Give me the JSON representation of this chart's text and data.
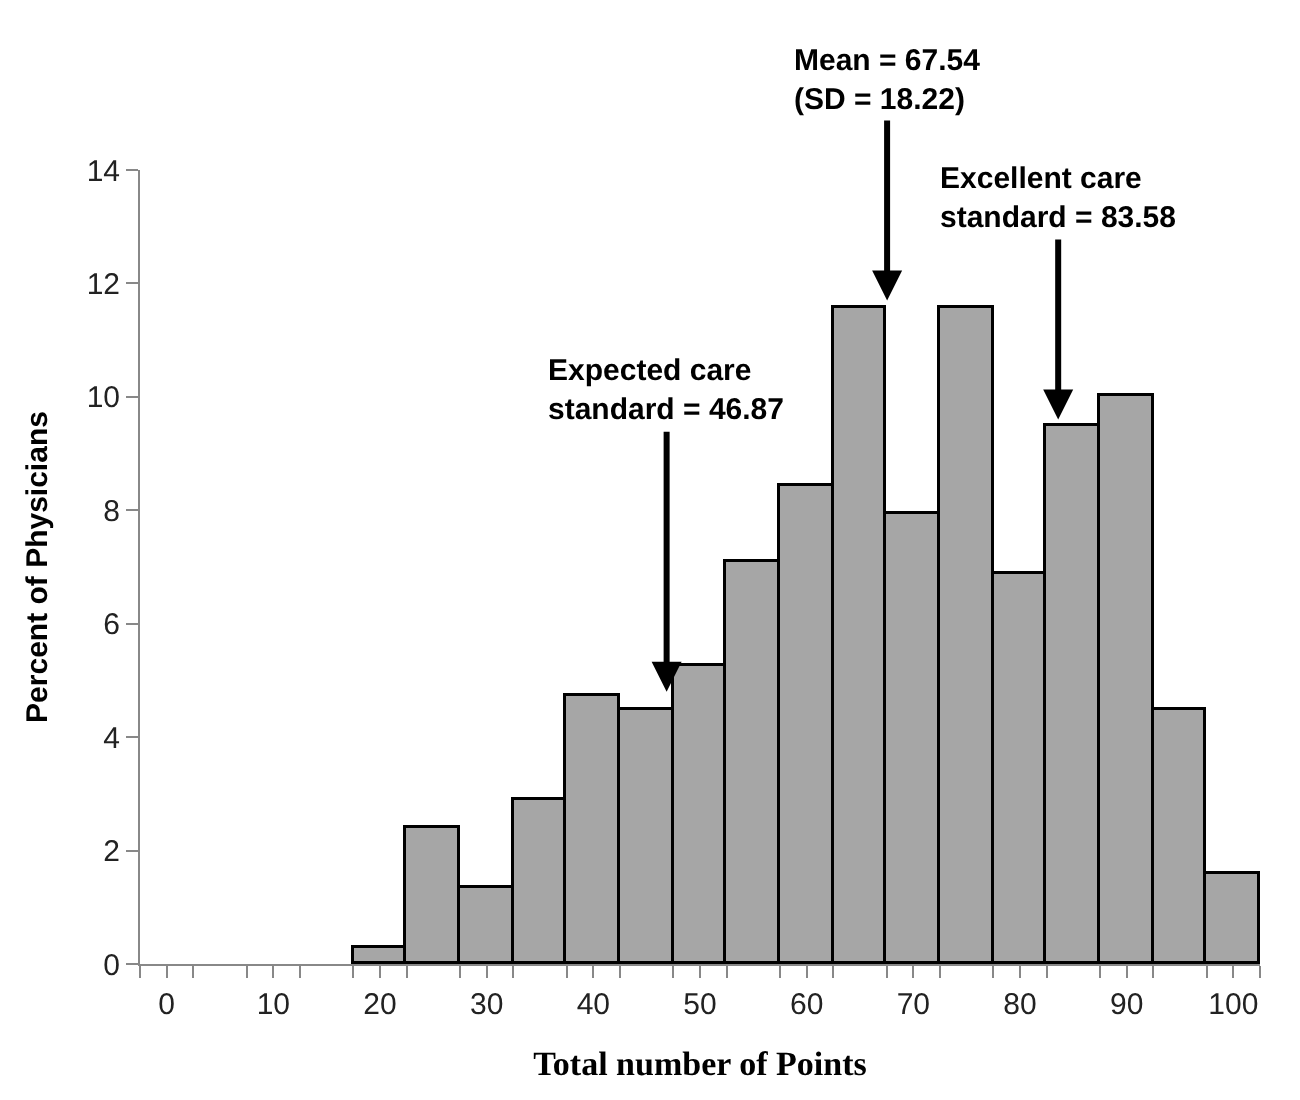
{
  "chart_data": {
    "type": "histogram",
    "xlabel": "Total number of Points",
    "ylabel": "Percent of Physicians",
    "bins": [
      17.5,
      22.5,
      27.5,
      32.5,
      37.5,
      42.5,
      47.5,
      52.5,
      57.5,
      62.5,
      67.5,
      72.5,
      77.5,
      82.5,
      87.5,
      92.5,
      97.5,
      102.5
    ],
    "values": [
      0.28,
      2.39,
      1.34,
      2.9,
      4.74,
      4.48,
      5.27,
      7.1,
      8.42,
      11.58,
      7.92,
      11.58,
      6.86,
      9.47,
      10.0,
      4.48,
      1.58
    ],
    "color": "#a6a6a6",
    "xlim": [
      -2.5,
      102.5
    ],
    "xticks": [
      0,
      10,
      20,
      30,
      40,
      50,
      60,
      70,
      80,
      90,
      100,
      {
        "value": -2.5,
        "label": null
      },
      {
        "value": 2.5,
        "label": null
      },
      {
        "value": 7.5,
        "label": null
      },
      {
        "value": 12.5,
        "label": null
      },
      {
        "value": 17.5,
        "label": null
      },
      {
        "value": 22.5,
        "label": null
      },
      {
        "value": 27.5,
        "label": null
      },
      {
        "value": 32.5,
        "label": null
      },
      {
        "value": 37.5,
        "label": null
      },
      {
        "value": 42.5,
        "label": null
      },
      {
        "value": 47.5,
        "label": null
      },
      {
        "value": 52.5,
        "label": null
      },
      {
        "value": 57.5,
        "label": null
      },
      {
        "value": 62.5,
        "label": null
      },
      {
        "value": 67.5,
        "label": null
      },
      {
        "value": 72.5,
        "label": null
      },
      {
        "value": 77.5,
        "label": null
      },
      {
        "value": 82.5,
        "label": null
      },
      {
        "value": 87.5,
        "label": null
      },
      {
        "value": 92.5,
        "label": null
      },
      {
        "value": 97.5,
        "label": null
      },
      {
        "value": 102.5,
        "label": null
      }
    ],
    "ylim": [
      0,
      14
    ],
    "yticks": [
      0,
      2,
      4,
      6,
      8,
      10,
      12,
      14
    ],
    "annotations": [
      {
        "text": "Expected care\nstandard = 46.87",
        "x": 46.87,
        "y": 4.8
      },
      {
        "text": "Mean = 67.54\n(SD = 18.22)",
        "x": 67.54,
        "y": 11.7
      },
      {
        "text": "Excellent care\nstandard = 83.58",
        "x": 83.58,
        "y": 9.6
      }
    ]
  }
}
